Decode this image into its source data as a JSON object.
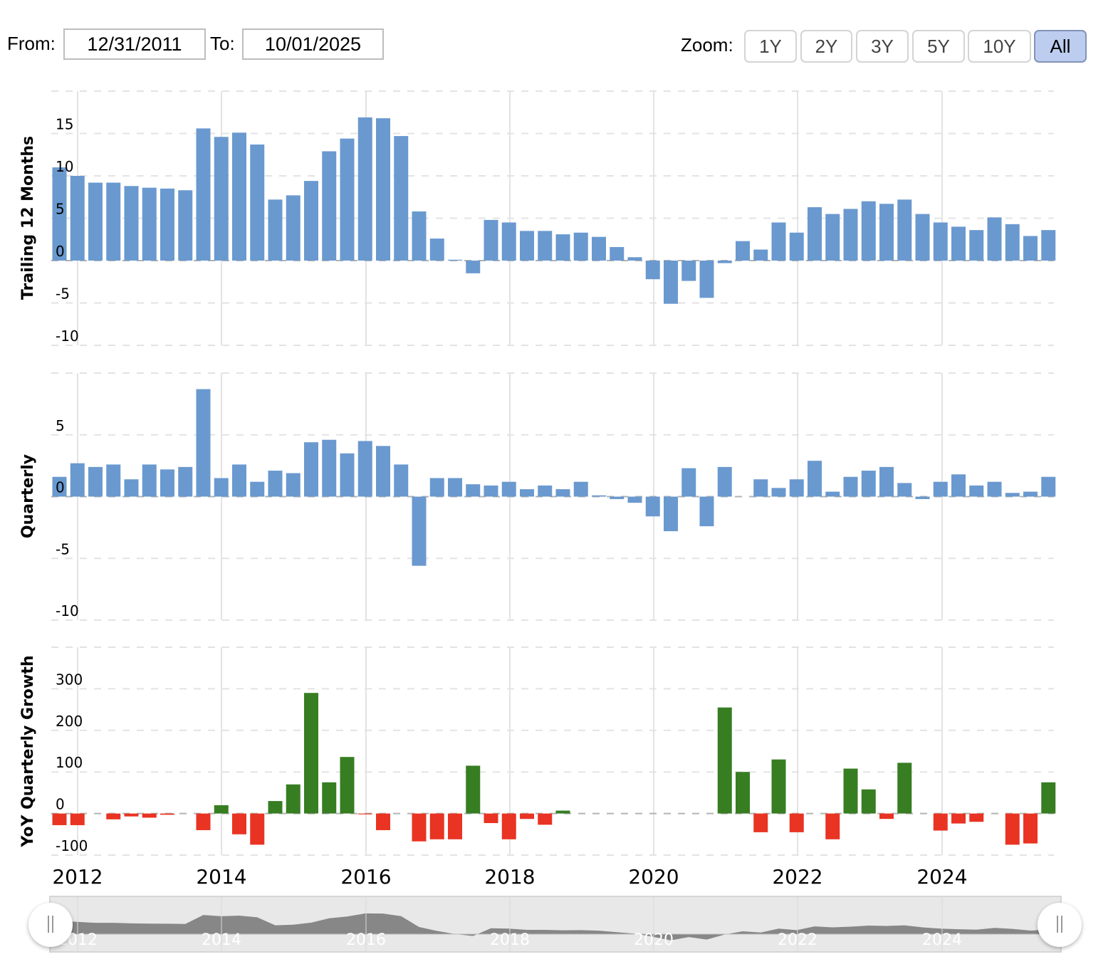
{
  "toolbar": {
    "from_label": "From:",
    "from_value": "12/31/2011",
    "to_label": "To:",
    "to_value": "10/01/2025",
    "zoom_label": "Zoom:",
    "zoom_buttons": [
      {
        "label": "1Y",
        "active": false
      },
      {
        "label": "2Y",
        "active": false
      },
      {
        "label": "3Y",
        "active": false
      },
      {
        "label": "5Y",
        "active": false
      },
      {
        "label": "10Y",
        "active": false
      },
      {
        "label": "All",
        "active": true
      }
    ]
  },
  "colors": {
    "bar_blue": "#6a99cf",
    "positive_green": "#377d22",
    "negative_red": "#e93323",
    "grid": "#e3e3e3",
    "zero_line": "#b3b3b3",
    "navigator_bg": "#e8e8e8",
    "navigator_area": "#878787",
    "zoom_active_bg": "#bccdf0"
  },
  "chart_data": [
    {
      "type": "bar",
      "title": "",
      "ylabel": "Trailing 12 Months",
      "xlabel": "",
      "ylim": [
        -10,
        20
      ],
      "yticks": [
        15,
        10,
        5,
        0,
        -5,
        -10
      ],
      "grid": true,
      "x_start": "2011-12-31",
      "x_step": "quarter",
      "values": [
        11.0,
        10.0,
        9.2,
        9.2,
        8.8,
        8.6,
        8.5,
        8.3,
        15.6,
        14.6,
        15.1,
        13.7,
        7.2,
        7.7,
        9.4,
        12.9,
        14.4,
        16.9,
        16.8,
        14.7,
        5.8,
        2.6,
        0.1,
        -1.5,
        4.8,
        4.5,
        3.5,
        3.5,
        3.1,
        3.3,
        2.8,
        1.6,
        0.4,
        -2.2,
        -5.1,
        -2.4,
        -4.4,
        -0.3,
        2.3,
        1.3,
        4.5,
        3.3,
        6.3,
        5.5,
        6.1,
        7.0,
        6.7,
        7.2,
        5.5,
        4.5,
        4.0,
        3.6,
        5.1,
        4.3,
        2.9,
        3.6
      ]
    },
    {
      "type": "bar",
      "title": "",
      "ylabel": "Quarterly",
      "xlabel": "",
      "ylim": [
        -10,
        10
      ],
      "yticks": [
        5,
        0,
        -5,
        -10
      ],
      "grid": true,
      "x_start": "2011-12-31",
      "x_step": "quarter",
      "values": [
        1.6,
        2.7,
        2.4,
        2.6,
        1.4,
        2.6,
        2.2,
        2.4,
        8.7,
        1.5,
        2.6,
        1.2,
        2.1,
        1.9,
        4.4,
        4.6,
        3.5,
        4.5,
        4.1,
        2.6,
        -5.6,
        1.5,
        1.5,
        1.0,
        0.9,
        1.2,
        0.6,
        0.9,
        0.6,
        1.2,
        0.1,
        -0.2,
        -0.5,
        -1.6,
        -2.8,
        2.3,
        -2.4,
        2.4,
        0.0,
        1.4,
        0.7,
        1.4,
        2.9,
        0.4,
        1.6,
        2.1,
        2.4,
        1.1,
        -0.2,
        1.2,
        1.8,
        0.9,
        1.2,
        0.3,
        0.4,
        1.6
      ]
    },
    {
      "type": "bar",
      "title": "",
      "ylabel": "YoY Quarterly Growth",
      "xlabel": "",
      "ylim": [
        -100,
        400
      ],
      "yticks": [
        300,
        200,
        100,
        0,
        -100
      ],
      "grid": true,
      "x_start": "2011-12-31",
      "x_step": "quarter",
      "positive_color": "#377d22",
      "negative_color": "#e93323",
      "values": [
        -28,
        -28,
        null,
        -14,
        -7,
        -10,
        -3,
        null,
        -40,
        20,
        -50,
        -75,
        30,
        70,
        290,
        75,
        136,
        -2,
        -40,
        null,
        -67,
        -62,
        -62,
        115,
        -23,
        -62,
        -13,
        -27,
        7,
        null,
        null,
        null,
        null,
        null,
        null,
        null,
        null,
        255,
        100,
        -45,
        130,
        -45,
        null,
        -62,
        108,
        58,
        -13,
        122,
        null,
        -41,
        -24,
        -20,
        null,
        -75,
        -72,
        75
      ]
    }
  ],
  "x_axis": {
    "tick_labels": [
      "2012",
      "2014",
      "2016",
      "2018",
      "2020",
      "2022",
      "2024"
    ]
  },
  "navigator": {
    "tick_labels": [
      "2012",
      "2014",
      "2016",
      "2018",
      "2020",
      "2022",
      "2024"
    ],
    "left_handle": "range-start",
    "right_handle": "range-end"
  }
}
